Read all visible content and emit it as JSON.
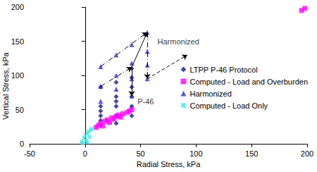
{
  "chart_data": {
    "type": "scatter",
    "x_label": "Radial Stress, kPa",
    "y_label": "Vertical Stress, kPa",
    "xlim": [
      -50,
      200
    ],
    "xticks": [
      -50,
      0,
      50,
      100,
      150,
      200
    ],
    "ylim": [
      0,
      200
    ],
    "yticks": [
      0,
      50,
      100,
      150,
      200
    ],
    "grid": false,
    "legend": "right",
    "series": [
      {
        "name": "LTPP P-46 Protocol",
        "color": "#1a1a8c",
        "marker": "diamond",
        "x": [
          14,
          14,
          14,
          14,
          14,
          14,
          28,
          28,
          28,
          28,
          28,
          28,
          42,
          42,
          42,
          42,
          42,
          42
        ],
        "values": [
          27,
          34,
          41,
          48,
          55,
          83,
          30,
          41,
          55,
          62,
          69,
          90,
          41,
          55,
          69,
          83,
          97,
          110
        ]
      },
      {
        "name": "Computed - Load and Overburden",
        "color": "#ff00ff",
        "marker": "square",
        "x": [
          10,
          12,
          14,
          16,
          18,
          20,
          22,
          24,
          26,
          28,
          30,
          32,
          34,
          38,
          40,
          42,
          195,
          198
        ],
        "values": [
          24,
          27,
          30,
          26,
          33,
          35,
          31,
          38,
          36,
          40,
          42,
          39,
          44,
          46,
          48,
          50,
          195,
          198
        ]
      },
      {
        "name": "Harmonized",
        "color": "#3333cc",
        "marker": "triangle",
        "x": [
          14,
          14,
          14,
          28,
          28,
          28,
          42,
          42,
          42,
          42,
          56,
          56,
          56,
          56
        ],
        "values": [
          113,
          84,
          62,
          130,
          100,
          80,
          145,
          118,
          95,
          70,
          163,
          135,
          115,
          95
        ]
      },
      {
        "name": "Computed - Load Only",
        "color": "#33e6e6",
        "marker": "cross",
        "x": [
          -3,
          -1,
          0,
          1,
          2,
          3,
          4,
          5,
          6,
          -2,
          2
        ],
        "values": [
          3,
          8,
          12,
          5,
          15,
          18,
          10,
          20,
          22,
          1,
          2
        ]
      }
    ],
    "annotations": [
      {
        "text": "Harmonized",
        "x": 62,
        "y": 150
      },
      {
        "text": "P-46",
        "x": 44,
        "y": 62
      }
    ],
    "arrows": [
      {
        "from": [
          14,
          113
        ],
        "to": [
          56,
          163
        ],
        "line_style": "dashdot"
      },
      {
        "from": [
          14,
          84
        ],
        "to": [
          42,
          112
        ],
        "line_style": "dashdot"
      },
      {
        "from": [
          56,
          163
        ],
        "to": [
          56,
          95
        ],
        "line_style": "dashdot"
      },
      {
        "from": [
          56,
          95
        ],
        "to": [
          92,
          130
        ],
        "line_style": "dashed"
      },
      {
        "from": [
          42,
          112
        ],
        "to": [
          56,
          163
        ],
        "line_style": "solid"
      },
      {
        "from": [
          42,
          112
        ],
        "to": [
          42,
          70
        ],
        "line_style": "solid"
      }
    ]
  }
}
